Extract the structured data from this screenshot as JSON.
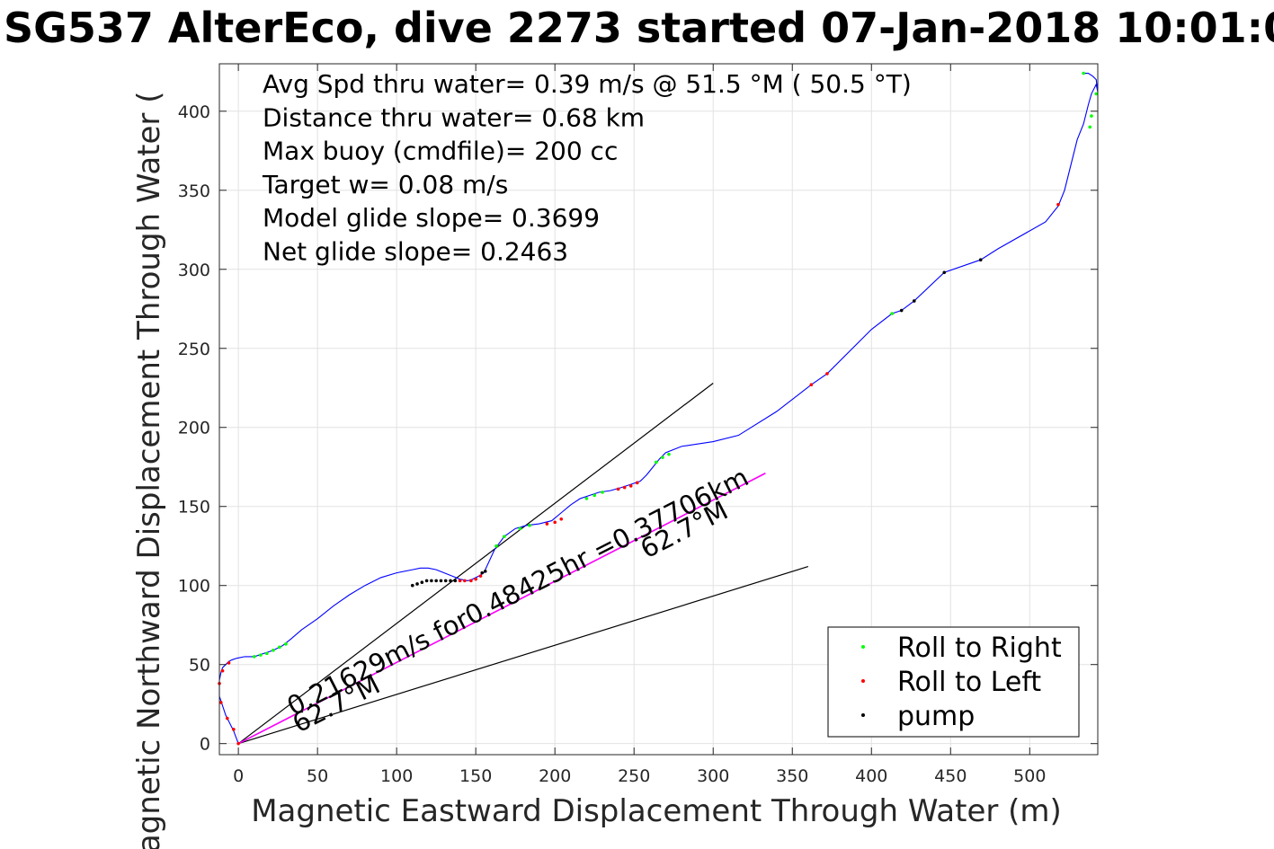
{
  "chart_data": {
    "type": "line",
    "title": "SG537 AlterEco, dive 2273 started 07-Jan-2018 10:01:0",
    "xlabel": "Magnetic Eastward Displacement Through Water (m)",
    "ylabel": "Magnetic Northward Displacement Through Water (",
    "xlim": [
      -12,
      543
    ],
    "ylim": [
      -7,
      430
    ],
    "xticks": [
      0,
      50,
      100,
      150,
      200,
      250,
      300,
      350,
      400,
      450,
      500
    ],
    "yticks": [
      0,
      50,
      100,
      150,
      200,
      250,
      300,
      350,
      400
    ],
    "grid": true,
    "annotations": [
      "Avg Spd thru water=  0.39 m/s @  51.5 °M ( 50.5 °T)",
      "Distance thru water=  0.68 km",
      "Max buoy (cmdfile)= 200 cc",
      "Target w= 0.08 m/s",
      "Model glide slope= 0.3699",
      "Net glide slope= 0.2463"
    ],
    "rotated_labels": {
      "speed": "0.21629m/s for0.48425hr =0.37706km",
      "heading_mid": "62.7°M",
      "heading_low": "62.7°M"
    },
    "legend": {
      "placement": "bottom-right",
      "entries": [
        {
          "label": "Roll to Right",
          "color": "#00ff00"
        },
        {
          "label": "Roll to Left",
          "color": "#ff0000"
        },
        {
          "label": "pump",
          "color": "#000000"
        }
      ]
    },
    "series": [
      {
        "color": "#0000ff",
        "x": [
          0,
          -3,
          -8,
          -12,
          -12,
          -11,
          -10,
          -8,
          -6,
          -4,
          -1,
          4,
          10,
          16,
          22,
          28,
          33,
          40,
          50,
          60,
          70,
          80,
          90,
          100,
          110,
          115,
          120,
          125,
          130,
          135,
          140,
          145,
          148,
          152,
          155,
          156,
          162,
          168,
          175,
          182,
          190,
          198,
          204,
          210,
          216,
          222,
          228,
          235,
          242,
          248,
          254,
          258,
          262,
          266,
          270,
          280,
          300,
          316,
          340,
          362,
          372,
          400,
          413,
          419,
          427,
          446,
          469,
          480,
          510,
          518,
          522,
          530,
          534,
          537,
          539,
          542,
          543,
          542,
          540,
          537,
          534
        ],
        "y": [
          0,
          8,
          18,
          30,
          40,
          45,
          48,
          50,
          52,
          53,
          54,
          55,
          55,
          57,
          59,
          62,
          66,
          72,
          79,
          87,
          94,
          100,
          105,
          108,
          110,
          111,
          111,
          110,
          108,
          106,
          104,
          103,
          104,
          106,
          108,
          110,
          123,
          131,
          136,
          138,
          139,
          141,
          146,
          151,
          155,
          157,
          159,
          160,
          162,
          164,
          166,
          170,
          175,
          180,
          184,
          188,
          191,
          195,
          210,
          227,
          234,
          262,
          272,
          274,
          280,
          298,
          306,
          313,
          330,
          340,
          350,
          382,
          392,
          404,
          411,
          417,
          412,
          420,
          422,
          424,
          424
        ]
      },
      {
        "name": "Roll to Right",
        "color": "#00ff00",
        "x": [
          10,
          14,
          18,
          22,
          26,
          30,
          163,
          168,
          178,
          184,
          220,
          225,
          230,
          264,
          268,
          272,
          413,
          534,
          538,
          539,
          542
        ],
        "y": [
          55,
          56,
          57,
          59,
          61,
          63,
          125,
          131,
          136,
          138,
          155,
          157,
          159,
          178,
          181,
          183,
          272,
          424,
          390,
          397,
          411
        ]
      },
      {
        "name": "Roll to Left",
        "color": "#ff0000",
        "x": [
          0,
          -3,
          -7,
          -11,
          -12,
          -10,
          -6,
          140,
          143,
          147,
          150,
          153,
          195,
          200,
          204,
          240,
          244,
          248,
          252,
          362,
          372,
          518
        ],
        "y": [
          0,
          9,
          16,
          26,
          38,
          46,
          51,
          103,
          103,
          103,
          104,
          106,
          139,
          140,
          142,
          161,
          162,
          163,
          165,
          227,
          234,
          341
        ]
      },
      {
        "name": "pump",
        "color": "#000000",
        "x": [
          110,
          113,
          116,
          119,
          122,
          125,
          128,
          131,
          134,
          137,
          154,
          156,
          419,
          427,
          446,
          469
        ],
        "y": [
          100,
          101,
          102,
          103,
          103,
          103,
          103,
          103,
          103,
          103,
          108,
          109,
          274,
          280,
          298,
          306
        ]
      }
    ],
    "reference_lines": [
      {
        "color": "#000000",
        "x": [
          0,
          300
        ],
        "y": [
          0,
          228
        ]
      },
      {
        "color": "#000000",
        "x": [
          0,
          360
        ],
        "y": [
          0,
          112
        ]
      },
      {
        "color": "#000000",
        "x": [
          0,
          333
        ],
        "y": [
          0,
          171
        ]
      },
      {
        "color": "#ff00ff",
        "x": [
          0,
          333
        ],
        "y": [
          0,
          171
        ]
      }
    ]
  }
}
